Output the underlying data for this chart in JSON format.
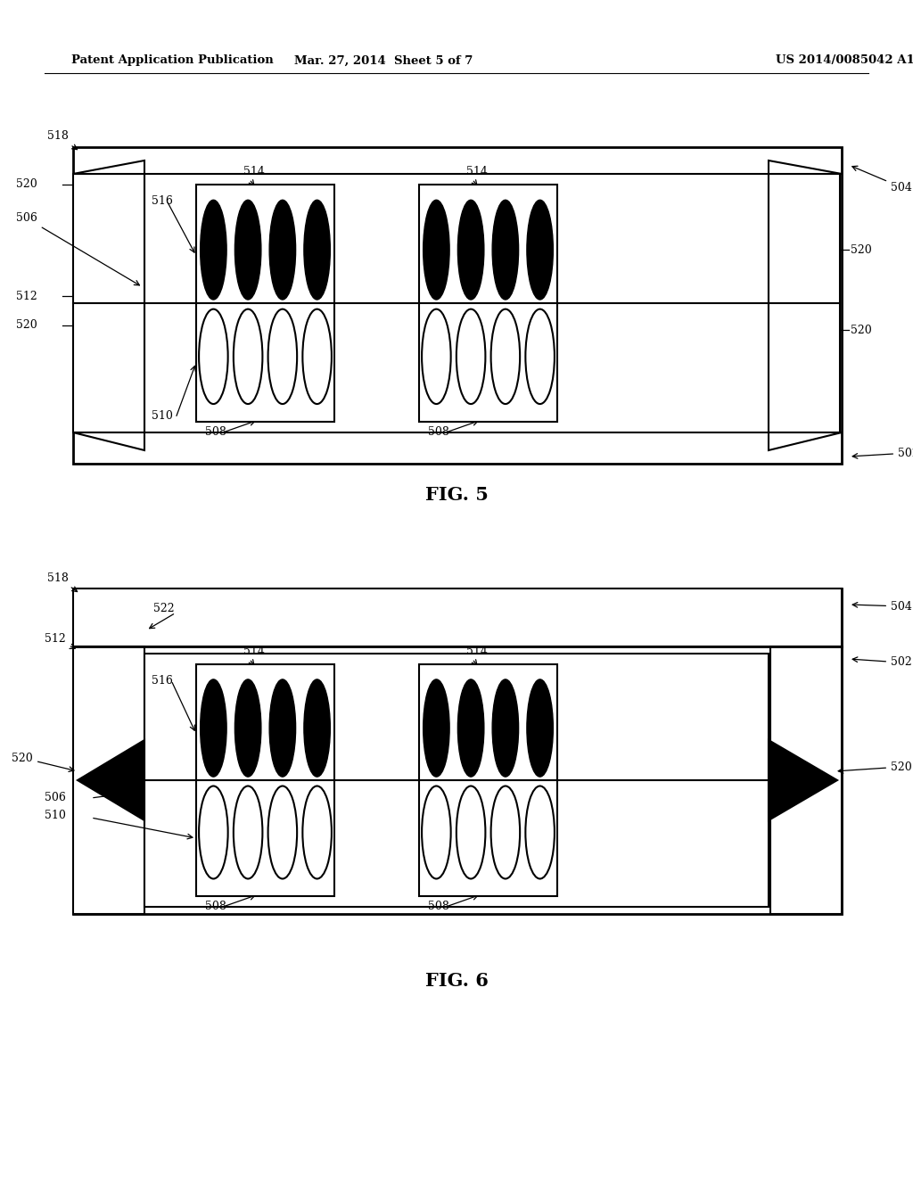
{
  "header_left": "Patent Application Publication",
  "header_center": "Mar. 27, 2014  Sheet 5 of 7",
  "header_right": "US 2014/0085042 A1",
  "fig5_caption": "FIG. 5",
  "fig6_caption": "FIG. 6",
  "bg": "#ffffff",
  "lc": "#000000"
}
